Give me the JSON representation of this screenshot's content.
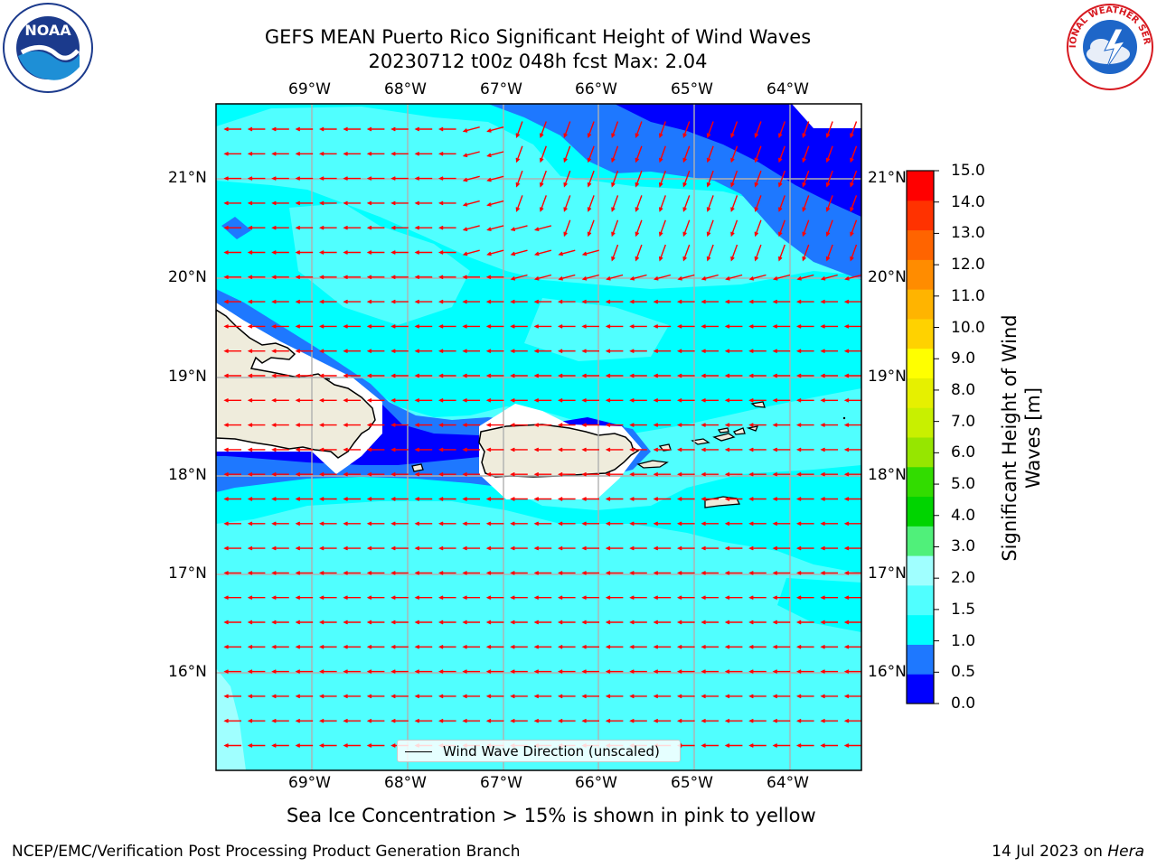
{
  "title": {
    "line1": "GEFS MEAN Puerto Rico Significant Height of Wind Waves",
    "line2": "20230712 t00z 048h fcst   Max: 2.04"
  },
  "logos": {
    "left": {
      "name": "noaa-logo",
      "text": "NOAA"
    },
    "right": {
      "name": "nws-logo",
      "text": "NATIONAL WEATHER SERVICE"
    }
  },
  "axes": {
    "lon_labels": [
      "69°W",
      "68°W",
      "67°W",
      "66°W",
      "65°W",
      "64°W"
    ],
    "lat_labels": [
      "21°N",
      "20°N",
      "19°N",
      "18°N",
      "17°N",
      "16°N"
    ]
  },
  "colorbar": {
    "label_line1": "Significant Height of Wind",
    "label_line2": "Waves [m]",
    "ticks": [
      "15.0",
      "14.0",
      "13.0",
      "12.0",
      "11.0",
      "10.0",
      "9.0",
      "8.0",
      "7.0",
      "6.0",
      "5.0",
      "4.0",
      "3.0",
      "2.0",
      "1.5",
      "1.0",
      "0.5",
      "0.0"
    ],
    "levels": [
      0.0,
      0.5,
      1.0,
      1.5,
      2.0,
      3.0,
      4.0,
      5.0,
      6.0,
      7.0,
      8.0,
      9.0,
      10.0,
      11.0,
      12.0,
      13.0,
      14.0,
      15.0
    ],
    "colors": [
      "#0000ff",
      "#1e78ff",
      "#00ffff",
      "#50ffff",
      "#a0ffff",
      "#50f07a",
      "#00d400",
      "#32dc00",
      "#96e600",
      "#c8f000",
      "#e6f000",
      "#ffff00",
      "#ffd200",
      "#ffb400",
      "#ff8c00",
      "#ff6400",
      "#ff3200",
      "#ff0000"
    ]
  },
  "legend": {
    "label": "Wind Wave Direction (unscaled)"
  },
  "note": "Sea Ice Concentration > 15% is shown in pink to yellow",
  "footer": {
    "left": "NCEP/EMC/Verification Post Processing Product Generation Branch",
    "right_prefix": "14 Jul 2023 on ",
    "right_italic": "Hera"
  },
  "map": {
    "lon_range": [
      -70.0,
      -63.25
    ],
    "lat_range": [
      15.0,
      21.75
    ],
    "colors": {
      "ocean_background": "#50ffff",
      "land": "#efecdc",
      "coast": "#000000",
      "grid": "#b0b0b0",
      "arrow": "#ff0000",
      "no_data": "#ffffff"
    }
  }
}
